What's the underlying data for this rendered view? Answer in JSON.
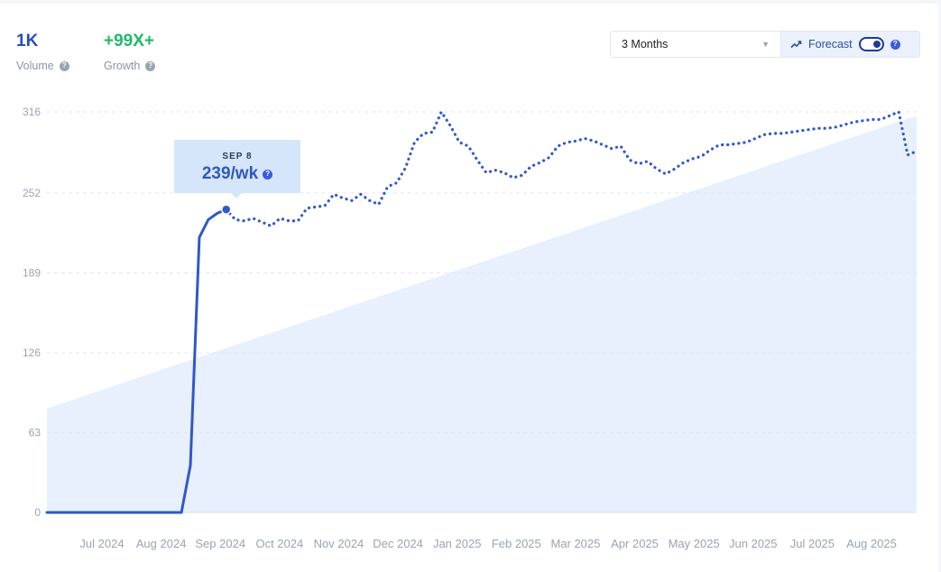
{
  "stats": {
    "volume": {
      "value": "1K",
      "label": "Volume",
      "color": "#2b4fb8"
    },
    "growth": {
      "value": "+99X+",
      "label": "Growth",
      "color": "#22b86a"
    }
  },
  "controls": {
    "timeframe": "3 Months",
    "forecast_label": "Forecast",
    "forecast_on": true,
    "trend_icon": "trending-up-icon"
  },
  "tooltip": {
    "date": "SEP 8",
    "value": "239/wk"
  },
  "chart_data": {
    "type": "line",
    "ylim": [
      0,
      316
    ],
    "yticks": [
      0,
      63,
      126,
      189,
      252,
      316
    ],
    "grid": true,
    "xlabels": [
      "Jul 2024",
      "Aug 2024",
      "Sep 2024",
      "Oct 2024",
      "Nov 2024",
      "Dec 2024",
      "Jan 2025",
      "Feb 2025",
      "Mar 2025",
      "Apr 2025",
      "May 2025",
      "Jun 2025",
      "Jul 2025",
      "Aug 2025"
    ],
    "series": [
      {
        "style": "solid",
        "color": "#3158c9",
        "x": [
          0,
          1,
          2,
          3,
          4,
          5,
          6,
          7,
          8,
          9,
          10,
          11,
          12,
          13,
          14,
          15
        ],
        "y": [
          0,
          0,
          0,
          0,
          0,
          0,
          0,
          0,
          0,
          0,
          0,
          0,
          0,
          0,
          0,
          0
        ]
      },
      {
        "style": "solid",
        "color": "#3158c9",
        "x": [
          15,
          16,
          17,
          18,
          19,
          20
        ],
        "y": [
          0,
          37,
          217,
          231,
          236,
          239
        ]
      },
      {
        "style": "dotted",
        "color": "#3158c9",
        "x": [
          20,
          21,
          22,
          23,
          24,
          25,
          26,
          27,
          28,
          29,
          30,
          31,
          32,
          33,
          34,
          35,
          36,
          37,
          38,
          39,
          40,
          41,
          42,
          43,
          44,
          45,
          46,
          47,
          48,
          49,
          50,
          51,
          52,
          53,
          54,
          55,
          56,
          57,
          58,
          59,
          60,
          61,
          62,
          63,
          64,
          65,
          66,
          67,
          68,
          69,
          70,
          71,
          72,
          73,
          74,
          75,
          76,
          77,
          78,
          79,
          80,
          81,
          82,
          83,
          84,
          85,
          86,
          87,
          88,
          89,
          90,
          91,
          92,
          93,
          94,
          95,
          96,
          97
        ],
        "y": [
          239,
          231,
          230,
          232,
          229,
          226,
          232,
          230,
          230,
          240,
          241,
          242,
          251,
          248,
          246,
          251,
          246,
          243,
          257,
          260,
          272,
          292,
          299,
          300,
          316,
          305,
          292,
          289,
          278,
          268,
          270,
          268,
          264,
          266,
          273,
          276,
          280,
          289,
          292,
          293,
          295,
          293,
          290,
          287,
          289,
          278,
          275,
          277,
          271,
          267,
          271,
          276,
          279,
          281,
          286,
          290,
          290,
          291,
          292,
          295,
          298,
          299,
          299,
          300,
          301,
          302,
          303,
          303,
          304,
          306,
          308,
          309,
          310,
          310,
          313,
          316,
          282,
          285
        ]
      }
    ],
    "area": {
      "color": "#e7f0fc",
      "x": [
        0,
        97
      ],
      "y": [
        82,
        313
      ]
    }
  }
}
